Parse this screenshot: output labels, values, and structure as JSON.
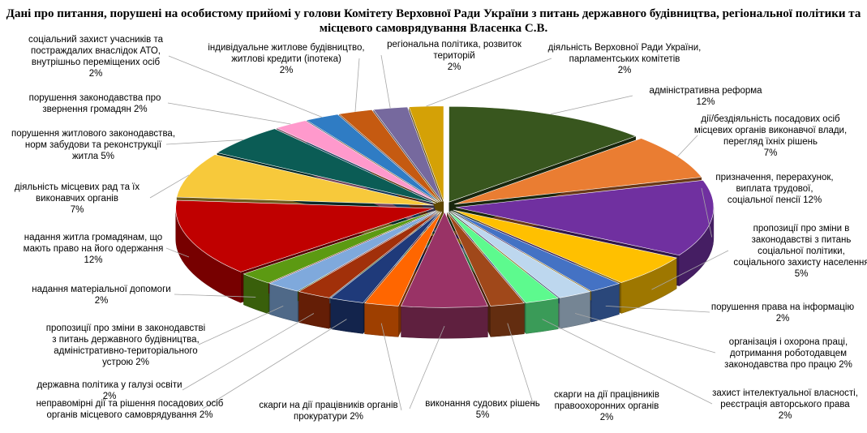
{
  "chart_data": {
    "type": "pie",
    "title": "Дані про питання, порушені на особистому прийомі у голови Комітету Верховної Ради України з питань державного будівництва, регіональної політики та місцевого самоврядування Власенка С.В.",
    "slices": [
      {
        "label": [
          "адміністративна реформа",
          "12%"
        ],
        "value": 12,
        "color": "#38561e"
      },
      {
        "label": [
          "дії/бездіяльність  посадових осіб",
          "місцевих органів виконавчої влади,",
          "перегляд їхніх  рішень",
          "7%"
        ],
        "value": 7,
        "color": "#ea7d32"
      },
      {
        "label": [
          "призначення, перерахунок,",
          "виплата трудової,",
          "соціальної пенсії 12%"
        ],
        "value": 12,
        "color": "#7030a0"
      },
      {
        "label": [
          "пропозиції про зміни в",
          "законодавстві з питань",
          "соціальної політики,",
          "соціального захисту населення",
          "5%"
        ],
        "value": 5,
        "color": "#ffc000"
      },
      {
        "label": [
          "порушення права на інформацію",
          "2%"
        ],
        "value": 2,
        "color": "#4472c4"
      },
      {
        "label": [
          "організація і охорона праці,",
          "дотримання роботодавцем",
          "законодавства про працю 2%"
        ],
        "value": 2,
        "color": "#bdd7ee"
      },
      {
        "label": [
          "захист інтелектуальної власності,",
          "реєстрація авторського права",
          "2%"
        ],
        "value": 2,
        "color": "#5dfa8e"
      },
      {
        "label": [
          "скарги на дії  працівників",
          "правоохоронних органів",
          "2%"
        ],
        "value": 2,
        "color": "#a0481a"
      },
      {
        "label": [
          "виконання судових рішень",
          "5%"
        ],
        "value": 5,
        "color": "#993366"
      },
      {
        "label": [
          "скарги на дії  працівників органів",
          "прокуратури 2%"
        ],
        "value": 2,
        "color": "#ff6600"
      },
      {
        "label": [
          "неправомірні дії та рішення посадових осіб",
          "органів місцевого самоврядування 2%"
        ],
        "value": 2,
        "color": "#1f3a7a"
      },
      {
        "label": [
          "державна політика у галузі освіти",
          "2%"
        ],
        "value": 2,
        "color": "#a1300a"
      },
      {
        "label": [
          "пропозиції про зміни в законодавстві",
          "з питань державного будівництва,",
          "адміністративно-територіального",
          "устрою 2%"
        ],
        "value": 2,
        "color": "#7fa9dc"
      },
      {
        "label": [
          "надання матеріальної допомоги",
          "2%"
        ],
        "value": 2,
        "color": "#5c9a12"
      },
      {
        "label": [
          "надання житла громадянам, що",
          "мають право на його одержання",
          "12%"
        ],
        "value": 12,
        "color": "#c00000"
      },
      {
        "label": [
          "діяльність  місцевих рад та їх",
          "виконавчих органів",
          "7%"
        ],
        "value": 7,
        "color": "#f7c93b"
      },
      {
        "label": [
          "порушення житлового законодавства,",
          "норм забудови та реконструкції",
          "житла 5%"
        ],
        "value": 5,
        "color": "#0b5c55"
      },
      {
        "label": [
          "порушення законодавства про",
          "звернення громадян 2%"
        ],
        "value": 2,
        "color": "#ff99cc"
      },
      {
        "label": [
          "соціальний захист  учасників та",
          "постраждалих внаслідок АТО,",
          "внутрішньо переміщених осіб",
          "2%"
        ],
        "value": 2,
        "color": "#2f7cc4"
      },
      {
        "label": [
          "індивідуальне житлове будівництво,",
          "житлові кредити (іпотека)",
          "2%"
        ],
        "value": 2,
        "color": "#c55a11"
      },
      {
        "label": [
          "регіональна політика, розвиток",
          "територій",
          "2%"
        ],
        "value": 2,
        "color": "#76699e"
      },
      {
        "label": [
          "діяльність Верховної Ради України,",
          "парламентських комітетів",
          "2%"
        ],
        "value": 2,
        "color": "#d4a106"
      }
    ]
  }
}
